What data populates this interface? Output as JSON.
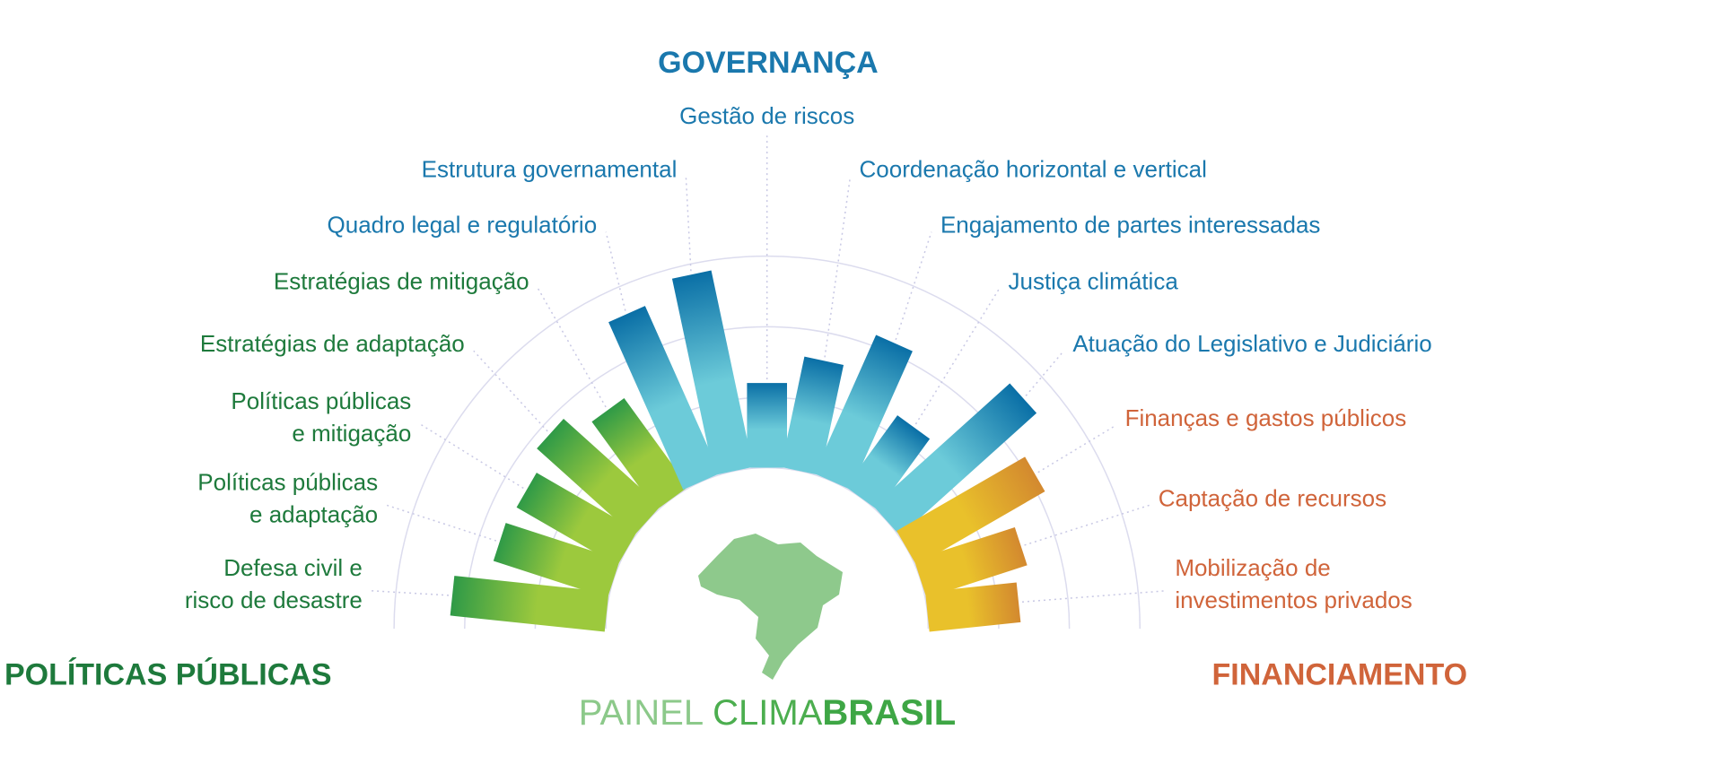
{
  "chart_data": {
    "type": "radial_bar",
    "rlim": [
      0,
      3
    ],
    "grid_rings": [
      0,
      1,
      2,
      3
    ],
    "grid": true,
    "series": [
      {
        "name": "POLÍTICAS PÚBLICAS",
        "color": "#1e7a3c",
        "bar_color": "#2f9a47",
        "bar_color_light": "#9cc93d",
        "categories": [
          "Defesa civil e\nrisco de desastre",
          "Políticas públicas\ne adaptação",
          "Políticas públicas\ne mitigação",
          "Estratégias de adaptação",
          "Estratégias de mitigação"
        ],
        "values": [
          2.2,
          1.7,
          1.65,
          1.85,
          1.55
        ]
      },
      {
        "name": "GOVERNANÇA",
        "color": "#1a78ad",
        "bar_color": "#0a6fa6",
        "bar_color_light": "#6ccbd9",
        "categories": [
          "Quadro legal e regulatório",
          "Estrutura governamental",
          "Gestão de riscos",
          "Coordenação horizontal e vertical",
          "Engajamento de partes interessadas",
          "Justiça climática",
          "Atuação do Legislativo e Judiciário"
        ],
        "values": [
          2.6,
          2.85,
          1.2,
          1.6,
          2.15,
          1.25,
          2.6
        ]
      },
      {
        "name": "FINANCIAMENTO",
        "color": "#d0643a",
        "bar_color": "#d3892f",
        "bar_color_light": "#e9c12b",
        "categories": [
          "Finanças e gastos públicos",
          "Captação de recursos",
          "Mobilização de\ninvestimentos privados"
        ],
        "values": [
          2.1,
          1.5,
          1.3
        ]
      }
    ],
    "brand": {
      "part1": "PAINEL",
      "part2": "CLIMA",
      "part3": "BRASIL"
    }
  }
}
